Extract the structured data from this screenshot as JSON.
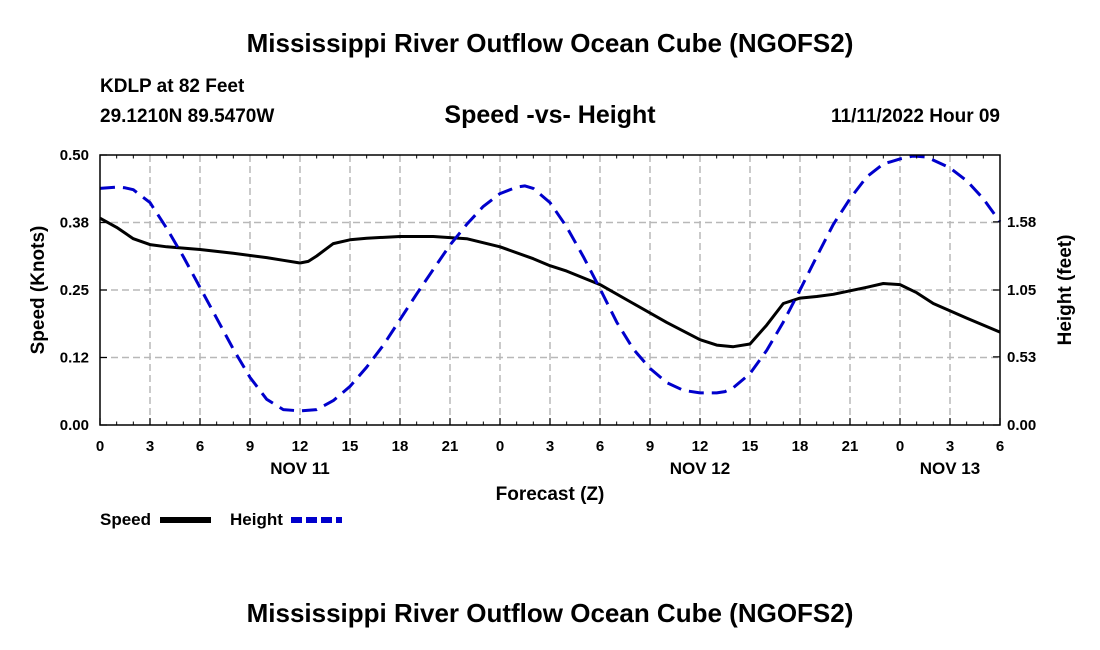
{
  "header": {
    "title": "Mississippi River Outflow Ocean Cube (NGOFS2)",
    "station": "KDLP at 82 Feet",
    "coordinates": "29.1210N  89.5470W",
    "subtitle": "Speed -vs- Height",
    "datetime": "11/11/2022 Hour 09"
  },
  "footer": {
    "title": "Mississippi River Outflow Ocean Cube (NGOFS2)"
  },
  "chart_data": {
    "type": "line",
    "title": "Speed -vs- Height",
    "xlabel": "Forecast (Z)",
    "ylabel": "Speed (Knots)",
    "y2label": "Height (feet)",
    "x_unit": "hours from NOV 11 00Z",
    "xlim": [
      0,
      54
    ],
    "ylim": [
      0,
      0.5
    ],
    "y2lim": [
      0,
      2.1
    ],
    "grid": true,
    "x_ticks": [
      {
        "x": 0,
        "label": "0"
      },
      {
        "x": 3,
        "label": "3"
      },
      {
        "x": 6,
        "label": "6"
      },
      {
        "x": 9,
        "label": "9"
      },
      {
        "x": 12,
        "label": "12"
      },
      {
        "x": 15,
        "label": "15"
      },
      {
        "x": 18,
        "label": "18"
      },
      {
        "x": 21,
        "label": "21"
      },
      {
        "x": 24,
        "label": "0"
      },
      {
        "x": 27,
        "label": "3"
      },
      {
        "x": 30,
        "label": "6"
      },
      {
        "x": 33,
        "label": "9"
      },
      {
        "x": 36,
        "label": "12"
      },
      {
        "x": 39,
        "label": "15"
      },
      {
        "x": 42,
        "label": "18"
      },
      {
        "x": 45,
        "label": "21"
      },
      {
        "x": 48,
        "label": "0"
      },
      {
        "x": 51,
        "label": "3"
      },
      {
        "x": 54,
        "label": "6"
      }
    ],
    "day_labels": [
      {
        "x": 12,
        "label": "NOV 11"
      },
      {
        "x": 36,
        "label": "NOV 12"
      },
      {
        "x": 51,
        "label": "NOV 13"
      }
    ],
    "y_ticks": [
      {
        "value": 0.0,
        "label": "0.00"
      },
      {
        "value": 0.125,
        "label": "0.12"
      },
      {
        "value": 0.25,
        "label": "0.25"
      },
      {
        "value": 0.375,
        "label": "0.38"
      },
      {
        "value": 0.5,
        "label": "0.50"
      }
    ],
    "y2_ticks": [
      {
        "value": 0.0,
        "label": "0.00"
      },
      {
        "value": 0.53,
        "label": "0.53"
      },
      {
        "value": 1.05,
        "label": "1.05"
      },
      {
        "value": 1.58,
        "label": "1.58"
      }
    ],
    "series": [
      {
        "name": "Speed",
        "axis": "left",
        "color": "#000000",
        "style": "solid",
        "x": [
          0,
          1,
          2,
          3,
          4,
          6,
          8,
          10,
          11,
          12,
          12.5,
          13,
          14,
          15,
          16,
          18,
          20,
          22,
          24,
          26,
          27,
          28,
          30,
          32,
          34,
          36,
          37,
          38,
          39,
          40,
          41,
          42,
          43,
          44,
          46,
          47,
          48,
          49,
          50,
          52,
          54
        ],
        "values": [
          0.383,
          0.366,
          0.345,
          0.334,
          0.33,
          0.325,
          0.318,
          0.31,
          0.305,
          0.3,
          0.303,
          0.313,
          0.336,
          0.343,
          0.346,
          0.349,
          0.349,
          0.345,
          0.33,
          0.308,
          0.295,
          0.285,
          0.26,
          0.225,
          0.19,
          0.158,
          0.148,
          0.145,
          0.15,
          0.185,
          0.225,
          0.235,
          0.238,
          0.242,
          0.255,
          0.262,
          0.26,
          0.245,
          0.225,
          0.198,
          0.172
        ]
      },
      {
        "name": "Height",
        "axis": "right",
        "color": "#0000cc",
        "style": "dashed",
        "x": [
          0,
          0.5,
          1,
          1.5,
          2,
          3,
          4,
          5,
          6,
          7,
          8,
          9,
          10,
          11,
          12,
          13,
          14,
          15,
          16,
          17,
          18,
          19,
          20,
          21,
          22,
          23,
          24,
          25,
          25.5,
          26,
          27,
          28,
          29,
          30,
          31,
          32,
          33,
          34,
          35,
          36,
          37,
          37.5,
          38,
          39,
          40,
          41,
          42,
          43,
          44,
          45,
          46,
          47,
          48,
          48.7,
          49,
          49.5,
          50,
          51,
          52,
          53,
          54
        ],
        "values": [
          1.84,
          1.845,
          1.85,
          1.845,
          1.83,
          1.73,
          1.53,
          1.31,
          1.07,
          0.83,
          0.59,
          0.37,
          0.2,
          0.12,
          0.11,
          0.12,
          0.19,
          0.3,
          0.45,
          0.62,
          0.82,
          1.02,
          1.21,
          1.4,
          1.56,
          1.7,
          1.8,
          1.85,
          1.86,
          1.84,
          1.73,
          1.54,
          1.31,
          1.06,
          0.8,
          0.59,
          0.44,
          0.33,
          0.27,
          0.25,
          0.25,
          0.26,
          0.29,
          0.4,
          0.58,
          0.8,
          1.05,
          1.31,
          1.56,
          1.76,
          1.93,
          2.03,
          2.07,
          2.09,
          2.09,
          2.085,
          2.06,
          2.0,
          1.9,
          1.76,
          1.58
        ]
      }
    ],
    "legend": [
      {
        "label": "Speed",
        "color": "#000000",
        "style": "solid"
      },
      {
        "label": "Height",
        "color": "#0000cc",
        "style": "dashed"
      }
    ],
    "legend_position": "bottom-left"
  }
}
